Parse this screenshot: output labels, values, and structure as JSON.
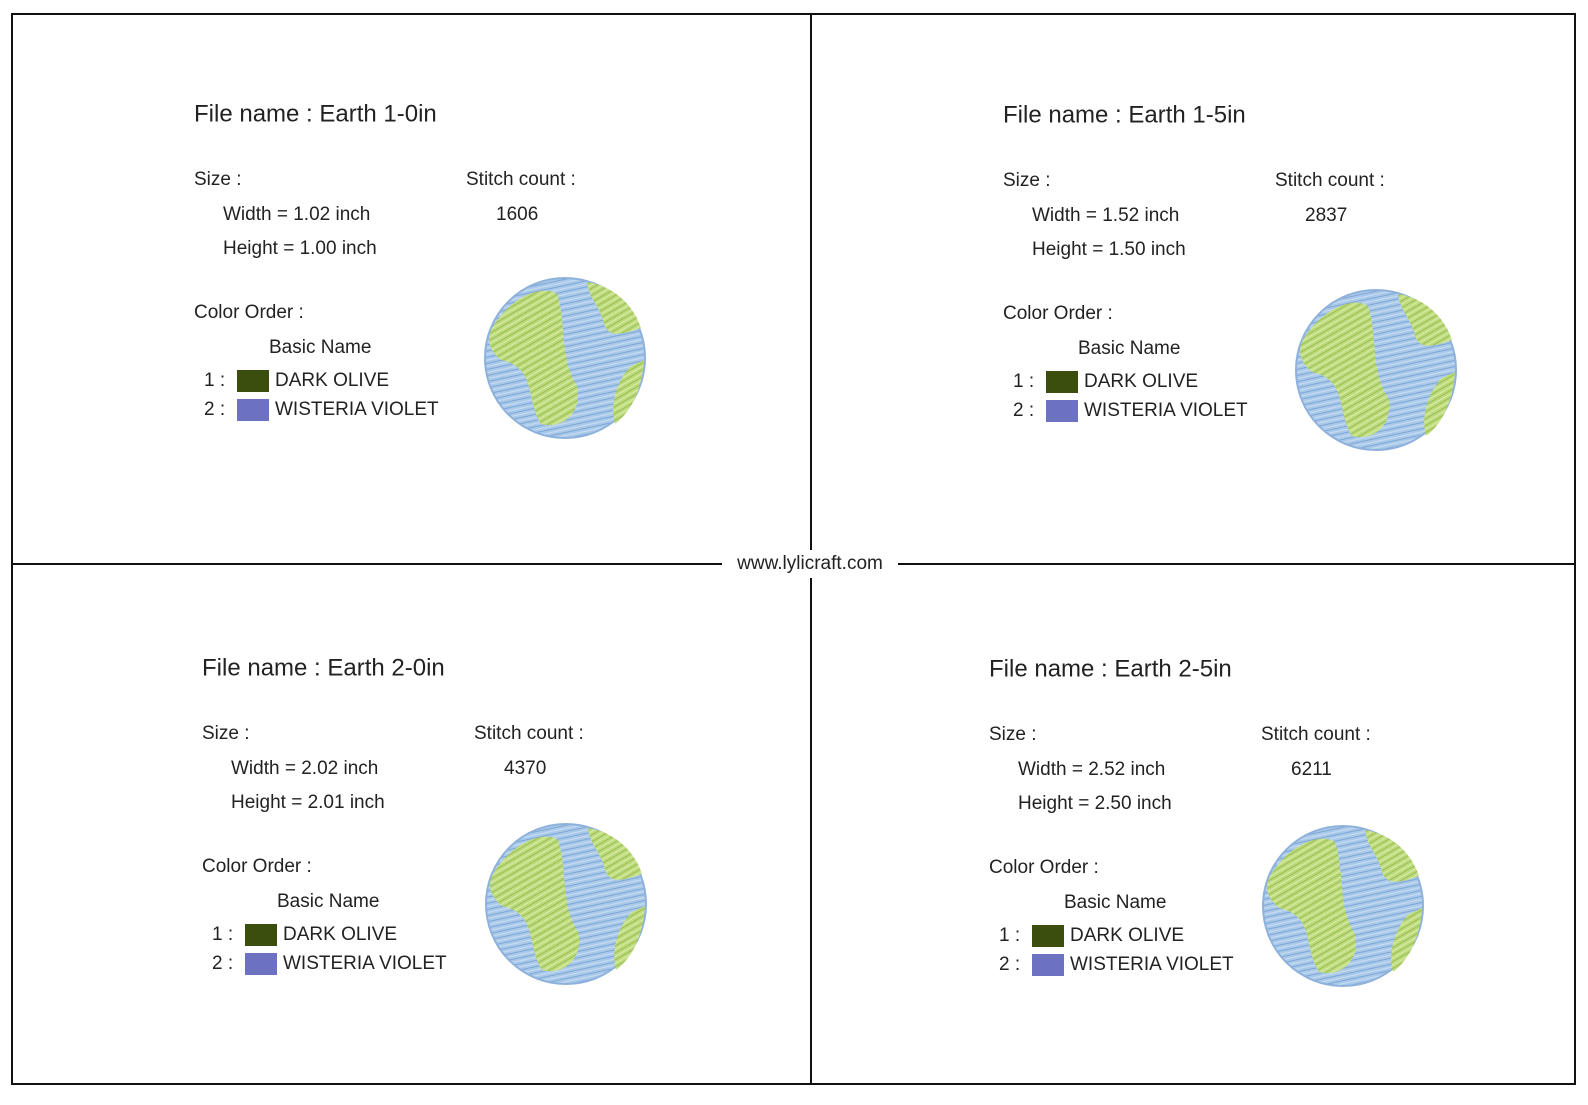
{
  "watermark": "www.lylicraft.com",
  "panels": [
    {
      "file_name": "File name : Earth 1-0in",
      "size_label": "Size :",
      "width": "Width  = 1.02 inch",
      "height": "Height = 1.00 inch",
      "stitch_label": "Stitch count :",
      "stitch_count": 1606,
      "color_order_label": "Color Order :",
      "basic_name": "Basic Name",
      "colors": [
        {
          "index": "1 :",
          "name": "DARK OLIVE",
          "swatch": "#3b4e0e"
        },
        {
          "index": "2 :",
          "name": "WISTERIA VIOLET",
          "swatch": "#6c72c0"
        }
      ]
    },
    {
      "file_name": "File name : Earth 1-5in",
      "size_label": "Size :",
      "width": "Width  = 1.52 inch",
      "height": "Height = 1.50 inch",
      "stitch_label": "Stitch count :",
      "stitch_count": 2837,
      "color_order_label": "Color Order :",
      "basic_name": "Basic Name",
      "colors": [
        {
          "index": "1 :",
          "name": "DARK OLIVE",
          "swatch": "#3b4e0e"
        },
        {
          "index": "2 :",
          "name": "WISTERIA VIOLET",
          "swatch": "#6c72c0"
        }
      ]
    },
    {
      "file_name": "File name : Earth 2-0in",
      "size_label": "Size :",
      "width": "Width  = 2.02 inch",
      "height": "Height = 2.01 inch",
      "stitch_label": "Stitch count :",
      "stitch_count": 4370,
      "color_order_label": "Color Order :",
      "basic_name": "Basic Name",
      "colors": [
        {
          "index": "1 :",
          "name": "DARK OLIVE",
          "swatch": "#3b4e0e"
        },
        {
          "index": "2 :",
          "name": "WISTERIA VIOLET",
          "swatch": "#6c72c0"
        }
      ]
    },
    {
      "file_name": "File name : Earth 2-5in",
      "size_label": "Size :",
      "width": "Width  = 2.52 inch",
      "height": "Height = 2.50 inch",
      "stitch_label": "Stitch count :",
      "stitch_count": 6211,
      "color_order_label": "Color Order :",
      "basic_name": "Basic Name",
      "colors": [
        {
          "index": "1 :",
          "name": "DARK OLIVE",
          "swatch": "#3b4e0e"
        },
        {
          "index": "2 :",
          "name": "WISTERIA VIOLET",
          "swatch": "#6c72c0"
        }
      ]
    }
  ]
}
